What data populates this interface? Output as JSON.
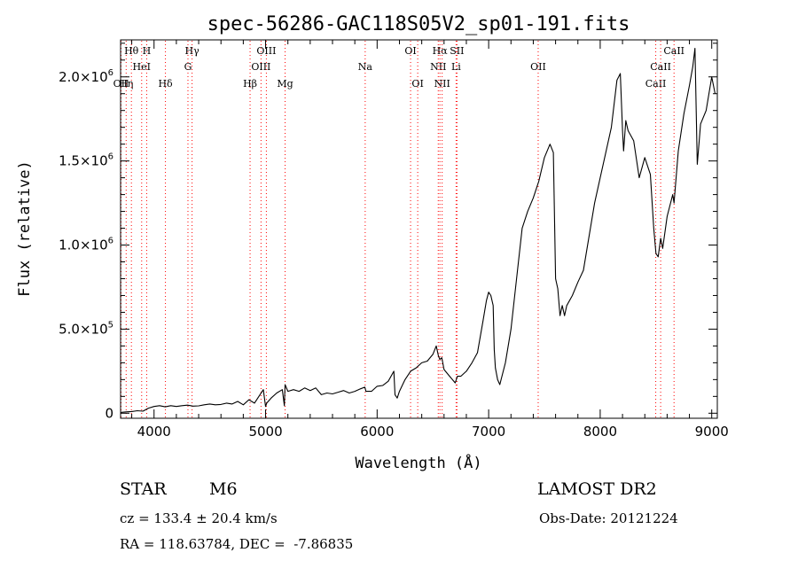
{
  "chart_data": {
    "type": "line",
    "title": "spec-56286-GAC118S05V2_sp01-191.fits",
    "xlabel": "Wavelength (Å)",
    "ylabel": "Flux (relative)",
    "xlim": [
      3700,
      9050
    ],
    "ylim": [
      -30000,
      2220000
    ],
    "xticks": [
      {
        "value": 4000,
        "label": "4000"
      },
      {
        "value": 5000,
        "label": "5000"
      },
      {
        "value": 6000,
        "label": "6000"
      },
      {
        "value": 7000,
        "label": "7000"
      },
      {
        "value": 8000,
        "label": "8000"
      },
      {
        "value": 9000,
        "label": "9000"
      }
    ],
    "yticks": [
      {
        "value": 0,
        "mant": "0",
        "exp": ""
      },
      {
        "value": 500000,
        "mant": "5.0×10",
        "exp": "5"
      },
      {
        "value": 1000000,
        "mant": "1.0×10",
        "exp": "6"
      },
      {
        "value": 1500000,
        "mant": "1.5×10",
        "exp": "6"
      },
      {
        "value": 2000000,
        "mant": "2.0×10",
        "exp": "6"
      }
    ],
    "grid": false,
    "line_color": "#000000",
    "marker_color": "#ff0000",
    "series": [
      {
        "x": [
          3700,
          3750,
          3800,
          3850,
          3900,
          3950,
          4000,
          4050,
          4100,
          4150,
          4200,
          4250,
          4300,
          4350,
          4400,
          4450,
          4500,
          4550,
          4600,
          4650,
          4700,
          4750,
          4800,
          4850,
          4900,
          4950,
          4980,
          5000,
          5010,
          5050,
          5100,
          5150,
          5168,
          5175,
          5200,
          5250,
          5300,
          5350,
          5400,
          5450,
          5500,
          5550,
          5600,
          5650,
          5700,
          5750,
          5800,
          5850,
          5890,
          5900,
          5950,
          6000,
          6050,
          6100,
          6150,
          6160,
          6180,
          6200,
          6250,
          6300,
          6350,
          6400,
          6450,
          6500,
          6530,
          6550,
          6563,
          6580,
          6600,
          6650,
          6700,
          6720,
          6750,
          6800,
          6850,
          6900,
          6950,
          6980,
          7000,
          7020,
          7040,
          7050,
          7060,
          7080,
          7100,
          7150,
          7200,
          7250,
          7300,
          7350,
          7400,
          7450,
          7500,
          7550,
          7580,
          7600,
          7620,
          7640,
          7660,
          7680,
          7700,
          7750,
          7800,
          7850,
          7900,
          7950,
          8000,
          8050,
          8100,
          8150,
          8180,
          8200,
          8210,
          8230,
          8250,
          8300,
          8350,
          8400,
          8450,
          8480,
          8500,
          8520,
          8542,
          8560,
          8600,
          8650,
          8662,
          8700,
          8750,
          8800,
          8830,
          8850,
          8870,
          8890,
          8900,
          8950,
          9000,
          9030
        ],
        "y": [
          5000,
          8000,
          10000,
          15000,
          12000,
          30000,
          40000,
          45000,
          38000,
          45000,
          40000,
          45000,
          48000,
          42000,
          44000,
          50000,
          55000,
          50000,
          52000,
          60000,
          55000,
          70000,
          50000,
          80000,
          60000,
          110000,
          140000,
          40000,
          60000,
          90000,
          120000,
          140000,
          45000,
          170000,
          130000,
          140000,
          130000,
          150000,
          135000,
          150000,
          110000,
          120000,
          115000,
          125000,
          135000,
          120000,
          130000,
          145000,
          155000,
          130000,
          130000,
          160000,
          165000,
          190000,
          250000,
          110000,
          90000,
          130000,
          200000,
          250000,
          270000,
          300000,
          310000,
          350000,
          400000,
          340000,
          320000,
          330000,
          260000,
          220000,
          180000,
          220000,
          220000,
          250000,
          300000,
          360000,
          550000,
          670000,
          720000,
          700000,
          640000,
          380000,
          270000,
          200000,
          170000,
          300000,
          500000,
          800000,
          1100000,
          1200000,
          1280000,
          1380000,
          1520000,
          1600000,
          1550000,
          800000,
          740000,
          580000,
          640000,
          580000,
          640000,
          700000,
          780000,
          850000,
          1050000,
          1250000,
          1400000,
          1550000,
          1700000,
          1980000,
          2020000,
          1680000,
          1560000,
          1740000,
          1680000,
          1620000,
          1400000,
          1520000,
          1420000,
          1100000,
          950000,
          930000,
          1040000,
          980000,
          1170000,
          1300000,
          1250000,
          1560000,
          1780000,
          1950000,
          2060000,
          2170000,
          1480000,
          1640000,
          1720000,
          1800000,
          2000000,
          1900000
        ]
      }
    ],
    "lines": [
      {
        "x": 3704,
        "label": "OII",
        "row": 3
      },
      {
        "x": 3750,
        "label": "Hη",
        "row": 3
      },
      {
        "x": 3797,
        "label": "Hθ",
        "row": 1
      },
      {
        "x": 3889,
        "label": "HeI",
        "row": 2
      },
      {
        "x": 3934,
        "label": "H",
        "row": 1
      },
      {
        "x": 4102,
        "label": "Hδ",
        "row": 3
      },
      {
        "x": 4304,
        "label": "G",
        "row": 2
      },
      {
        "x": 4341,
        "label": "Hγ",
        "row": 1
      },
      {
        "x": 4861,
        "label": "Hβ",
        "row": 3
      },
      {
        "x": 4959,
        "label": "OIII",
        "row": 2
      },
      {
        "x": 5007,
        "label": "OIII",
        "row": 1
      },
      {
        "x": 5175,
        "label": "Mg",
        "row": 3
      },
      {
        "x": 5893,
        "label": "Na",
        "row": 2
      },
      {
        "x": 6300,
        "label": "OI",
        "row": 1
      },
      {
        "x": 6364,
        "label": "OI",
        "row": 3
      },
      {
        "x": 6548,
        "label": "NII",
        "row": 2
      },
      {
        "x": 6563,
        "label": "Hα",
        "row": 1
      },
      {
        "x": 6583,
        "label": "NII",
        "row": 3
      },
      {
        "x": 6716,
        "label": "SII",
        "row": 1
      },
      {
        "x": 6708,
        "label": "Li",
        "row": 2
      },
      {
        "x": 7444,
        "label": "OII",
        "row": 2
      },
      {
        "x": 8498,
        "label": "CaII",
        "row": 3
      },
      {
        "x": 8542,
        "label": "CaII",
        "row": 2
      },
      {
        "x": 8662,
        "label": "CaII",
        "row": 1
      }
    ]
  },
  "info": {
    "class_label": "STAR",
    "subclass": "M6",
    "survey": "LAMOST DR2",
    "cz": "cz = 133.4 ± 20.4 km/s",
    "obs_date": "Obs-Date: 20121224",
    "coords": "RA = 118.63784, DEC =  -7.86835"
  }
}
